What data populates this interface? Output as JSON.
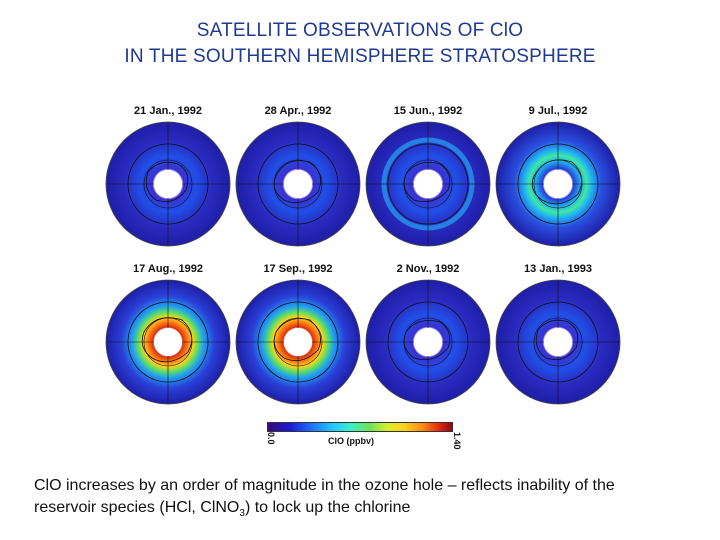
{
  "title": {
    "line1": "SATELLITE OBSERVATIONS OF ClO",
    "line2": "IN THE SOUTHERN HEMISPHERE STRATOSPHERE"
  },
  "panels": [
    {
      "date": "21 Jan., 1992"
    },
    {
      "date": "28 Apr., 1992"
    },
    {
      "date": "15 Jun., 1992"
    },
    {
      "date": "9 Jul., 1992"
    },
    {
      "date": "17 Aug., 1992"
    },
    {
      "date": "17 Sep., 1992"
    },
    {
      "date": "2 Nov., 1992"
    },
    {
      "date": "13 Jan., 1993"
    }
  ],
  "colorbar": {
    "min": "0.0",
    "max": "1.40",
    "label": "ClO (ppbv)"
  },
  "caption": {
    "line1": "ClO increases by an order of magnitude in the ozone hole – reflects inability of the",
    "line2_prefix": "reservoir species (HCl, ClNO",
    "line2_sub": "3",
    "line2_suffix": ") to lock up the chlorine"
  }
}
